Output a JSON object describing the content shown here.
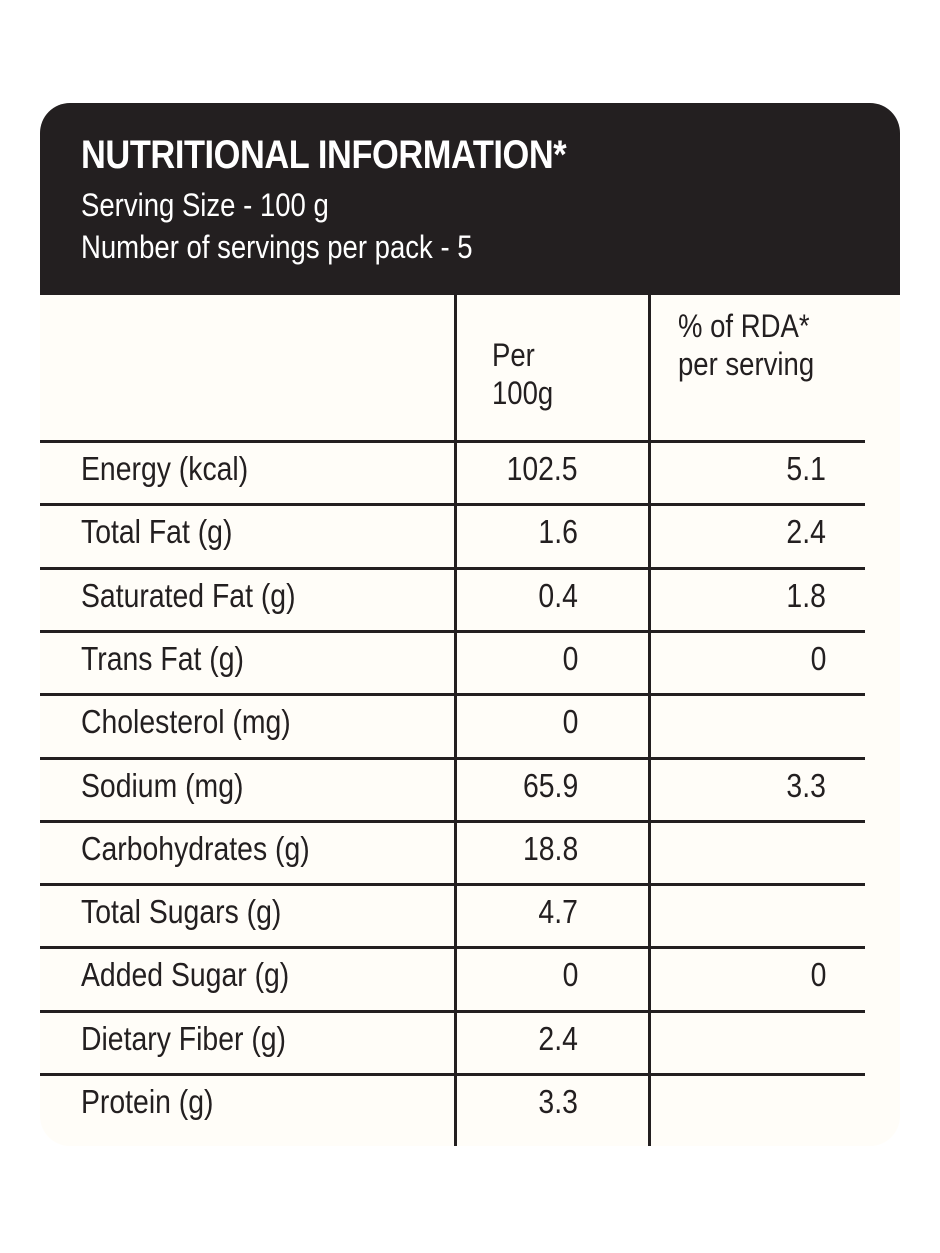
{
  "header": {
    "title": "NUTRITIONAL INFORMATION*",
    "serving_size": "Serving Size - 100 g",
    "servings_per_pack": "Number of servings per pack - 5"
  },
  "columns": {
    "per_line1": "Per",
    "per_line2": "100g",
    "rda_line1": "% of RDA*",
    "rda_line2": "per serving"
  },
  "rows": [
    {
      "label": "Energy (kcal)",
      "per_100g": "102.5",
      "rda": "5.1"
    },
    {
      "label": "Total Fat (g)",
      "per_100g": "1.6",
      "rda": "2.4"
    },
    {
      "label": "Saturated Fat (g)",
      "per_100g": "0.4",
      "rda": "1.8"
    },
    {
      "label": "Trans Fat (g)",
      "per_100g": "0",
      "rda": "0"
    },
    {
      "label": "Cholesterol (mg)",
      "per_100g": "0",
      "rda": ""
    },
    {
      "label": "Sodium (mg)",
      "per_100g": "65.9",
      "rda": "3.3"
    },
    {
      "label": "Carbohydrates (g)",
      "per_100g": "18.8",
      "rda": ""
    },
    {
      "label": "Total Sugars (g)",
      "per_100g": "4.7",
      "rda": ""
    },
    {
      "label": "Added Sugar (g)",
      "per_100g": "0",
      "rda": "0"
    },
    {
      "label": "Dietary Fiber (g)",
      "per_100g": "2.4",
      "rda": ""
    },
    {
      "label": "Protein (g)",
      "per_100g": "3.3",
      "rda": ""
    }
  ],
  "colors": {
    "header_bg": "#231f20",
    "panel_bg": "#fffdf8",
    "text": "#231f20"
  }
}
